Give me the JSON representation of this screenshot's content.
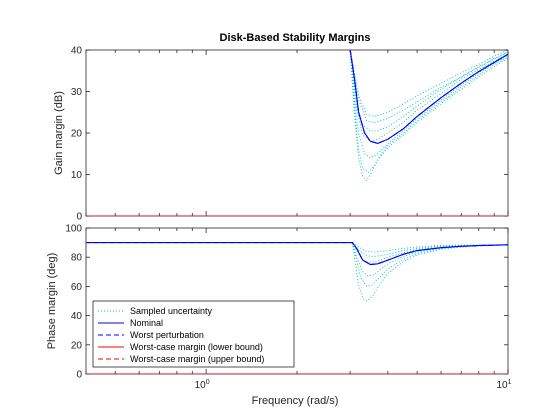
{
  "chart_data": {
    "type": "line",
    "title": "Disk-Based Stability Margins",
    "xlabel": "Frequency (rad/s)",
    "xscale": "log",
    "xlim": [
      0.4,
      10
    ],
    "x_tick_labels": [
      "10^0",
      "10^1"
    ],
    "legend_placement": "lower-left (bottom panel)",
    "legend": [
      {
        "label": "Sampled uncertainty",
        "color": "#00BFBF",
        "style": "dotted"
      },
      {
        "label": "Nominal",
        "color": "#0000FF",
        "style": "solid"
      },
      {
        "label": "Worst perturbation",
        "color": "#0000FF",
        "style": "dashed"
      },
      {
        "label": "Worst-case margin (lower bound)",
        "color": "#FF0000",
        "style": "solid"
      },
      {
        "label": "Worst-case margin (upper bound)",
        "color": "#FF0000",
        "style": "dashed"
      }
    ],
    "panels": [
      {
        "name": "gain",
        "ylabel": "Gain margin (dB)",
        "ylim": [
          0,
          40
        ],
        "yticks": [
          0,
          10,
          20,
          30,
          40
        ],
        "series": [
          {
            "name": "Nominal",
            "x": [
              3.0,
              3.1,
              3.2,
              3.35,
              3.5,
              3.7,
              4.0,
              4.5,
              5.0,
              6.0,
              7.0,
              8.0,
              9.0,
              10.0
            ],
            "y": [
              40,
              33,
              25,
              20,
              18,
              17.5,
              18.5,
              21,
              24,
              28.5,
              32,
              34.8,
              37,
              39
            ]
          },
          {
            "name": "Worst perturbation",
            "x": [
              3.0,
              3.1,
              3.2,
              3.35,
              3.5,
              3.7,
              4.0,
              4.5,
              5.0,
              6.0,
              7.0,
              8.0,
              9.0,
              10.0
            ],
            "y": [
              40,
              33,
              25,
              20,
              18,
              17.5,
              18.5,
              21,
              24,
              28.5,
              32,
              34.8,
              37,
              39
            ]
          },
          {
            "name": "Worst-case margin (lower bound)",
            "x": [
              0.4,
              10
            ],
            "y": [
              0,
              0
            ]
          },
          {
            "name": "Worst-case margin (upper bound)",
            "x": [
              0.4,
              10
            ],
            "y": [
              0,
              0
            ]
          }
        ],
        "sampled": [
          {
            "x": [
              3.0,
              3.2,
              3.4,
              3.6,
              4.0,
              4.5,
              5.0,
              6.0,
              7.0,
              8.0,
              9.0,
              10.0
            ],
            "y": [
              40,
              29,
              24.5,
              24,
              25,
              27,
              29,
              32,
              34.5,
              36.5,
              38.5,
              40
            ]
          },
          {
            "x": [
              3.0,
              3.2,
              3.4,
              3.6,
              4.0,
              4.5,
              5.0,
              6.0,
              7.0,
              8.0,
              9.0,
              10.0
            ],
            "y": [
              40,
              28,
              23,
              22.5,
              23.5,
              25.5,
              27.5,
              31,
              33.5,
              36,
              38,
              39.5
            ]
          },
          {
            "x": [
              3.0,
              3.15,
              3.3,
              3.5,
              3.7,
              4.0,
              4.5,
              5.0,
              6.0,
              7.0,
              8.0,
              9.0,
              10.0
            ],
            "y": [
              40,
              27,
              22,
              20.5,
              20.5,
              21.5,
              24,
              26.5,
              30.5,
              33.5,
              35.8,
              37.8,
              39.5
            ]
          },
          {
            "x": [
              3.0,
              3.15,
              3.3,
              3.5,
              3.7,
              4.0,
              4.5,
              5.0,
              6.0,
              7.0,
              8.0,
              9.0,
              10.0
            ],
            "y": [
              40,
              26,
              19.5,
              18,
              18.5,
              20,
              22.5,
              25.5,
              29.5,
              33,
              35.3,
              37.3,
              39
            ]
          },
          {
            "x": [
              3.0,
              3.1,
              3.2,
              3.35,
              3.5,
              3.7,
              4.0,
              4.5,
              5.0,
              6.0,
              7.0,
              8.0,
              9.0,
              10.0
            ],
            "y": [
              40,
              28,
              20,
              15,
              14,
              15,
              17.5,
              20.5,
              23.5,
              28,
              31.5,
              34.5,
              36.8,
              38.6
            ]
          },
          {
            "x": [
              3.0,
              3.1,
              3.2,
              3.3,
              3.45,
              3.6,
              3.8,
              4.0,
              4.5,
              5.0,
              6.0,
              7.0,
              8.0,
              9.0,
              10.0
            ],
            "y": [
              40,
              26,
              16,
              11.5,
              10.5,
              12,
              15,
              17,
              20,
              23,
              27.5,
              31,
              34,
              36.5,
              38.3
            ]
          },
          {
            "x": [
              3.0,
              3.1,
              3.2,
              3.3,
              3.4,
              3.5,
              3.7,
              4.0,
              4.5,
              5.0,
              6.0,
              7.0,
              8.0,
              9.0,
              10.0
            ],
            "y": [
              40,
              24,
              14,
              9.5,
              8.5,
              10,
              13.5,
              16.5,
              19.5,
              22.5,
              27,
              30.5,
              33.5,
              36,
              38
            ]
          }
        ]
      },
      {
        "name": "phase",
        "ylabel": "Phase margin (deg)",
        "ylim": [
          0,
          100
        ],
        "yticks": [
          0,
          20,
          40,
          60,
          80,
          100
        ],
        "series": [
          {
            "name": "Nominal",
            "x": [
              0.4,
              3.05,
              3.15,
              3.3,
              3.5,
              3.7,
              4.0,
              4.5,
              5.0,
              6.0,
              7.0,
              8.0,
              10.0
            ],
            "y": [
              90,
              90,
              86,
              78,
              75,
              75.5,
              78,
              82,
              84.5,
              86.5,
              87.5,
              88,
              88.5
            ]
          },
          {
            "name": "Worst perturbation",
            "x": [
              0.4,
              3.05,
              3.15,
              3.3,
              3.5,
              3.7,
              4.0,
              4.5,
              5.0,
              6.0,
              7.0,
              8.0,
              10.0
            ],
            "y": [
              90,
              90,
              86,
              78,
              75,
              75.5,
              78,
              82,
              84.5,
              86.5,
              87.5,
              88,
              88.5
            ]
          },
          {
            "name": "Worst-case margin (lower bound)",
            "x": [
              0.4,
              10
            ],
            "y": [
              0,
              0
            ]
          },
          {
            "name": "Worst-case margin (upper bound)",
            "x": [
              0.4,
              10
            ],
            "y": [
              0,
              0
            ]
          }
        ],
        "sampled": [
          {
            "x": [
              0.4,
              3.05,
              3.2,
              3.4,
              3.6,
              4.0,
              4.5,
              5.0,
              6.0,
              7.0,
              10.0
            ],
            "y": [
              90,
              90,
              87,
              84,
              83.5,
              84.5,
              86,
              87,
              88,
              88.3,
              88.5
            ]
          },
          {
            "x": [
              0.4,
              3.05,
              3.2,
              3.4,
              3.6,
              4.0,
              4.5,
              5.0,
              6.0,
              7.0,
              10.0
            ],
            "y": [
              90,
              90,
              85,
              81,
              80.5,
              82,
              84.5,
              86,
              87.5,
              88,
              88.5
            ]
          },
          {
            "x": [
              0.4,
              3.05,
              3.2,
              3.35,
              3.5,
              3.7,
              4.0,
              4.5,
              5.0,
              6.0,
              7.0,
              10.0
            ],
            "y": [
              90,
              90,
              82,
              77,
              76.5,
              77.5,
              80,
              83,
              85,
              87,
              87.8,
              88.5
            ]
          },
          {
            "x": [
              0.4,
              3.05,
              3.15,
              3.3,
              3.45,
              3.6,
              3.8,
              4.0,
              4.5,
              5.0,
              6.0,
              7.0,
              10.0
            ],
            "y": [
              90,
              90,
              80,
              70,
              67,
              68,
              72,
              75.5,
              80.5,
              83.5,
              86.5,
              87.5,
              88.5
            ]
          },
          {
            "x": [
              0.4,
              3.05,
              3.15,
              3.25,
              3.4,
              3.55,
              3.75,
              4.0,
              4.5,
              5.0,
              6.0,
              7.0,
              10.0
            ],
            "y": [
              90,
              90,
              78,
              66,
              60,
              61,
              66,
              72,
              78.5,
              82.5,
              86,
              87.3,
              88.5
            ]
          },
          {
            "x": [
              0.4,
              3.05,
              3.12,
              3.2,
              3.3,
              3.4,
              3.55,
              3.75,
              4.0,
              4.5,
              5.0,
              6.0,
              7.0,
              10.0
            ],
            "y": [
              90,
              90,
              76,
              61,
              52,
              50,
              53,
              61,
              69,
              77,
              81.5,
              85.5,
              87,
              88.5
            ]
          }
        ]
      }
    ]
  }
}
